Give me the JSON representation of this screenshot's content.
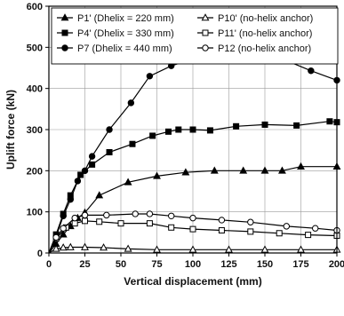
{
  "chart_data": {
    "type": "line",
    "xlabel": "Vertical displacement (mm)",
    "ylabel": "Uplift force (kN)",
    "xlim": [
      0,
      200
    ],
    "ylim": [
      0,
      600
    ],
    "xticks": [
      0,
      25,
      50,
      75,
      100,
      125,
      150,
      175,
      200
    ],
    "yticks": [
      0,
      100,
      200,
      300,
      400,
      500,
      600
    ],
    "grid": true,
    "legend_position": "top",
    "series": [
      {
        "name": "P1' (Dhelix = 220 mm)",
        "marker": "triangle-filled",
        "color": "#000000",
        "x": [
          0,
          5,
          10,
          15,
          20,
          25,
          35,
          55,
          75,
          95,
          115,
          135,
          150,
          162,
          175,
          200
        ],
        "y": [
          0,
          22,
          45,
          65,
          85,
          98,
          140,
          172,
          187,
          196,
          200,
          200,
          200,
          200,
          210,
          210
        ]
      },
      {
        "name": "P4' (Dhelix = 330 mm)",
        "marker": "square-filled",
        "color": "#000000",
        "x": [
          0,
          5,
          10,
          15,
          22,
          30,
          42,
          58,
          72,
          83,
          90,
          100,
          112,
          130,
          150,
          172,
          195,
          200
        ],
        "y": [
          0,
          45,
          95,
          140,
          190,
          215,
          245,
          265,
          285,
          295,
          300,
          300,
          298,
          308,
          312,
          310,
          320,
          318
        ]
      },
      {
        "name": "P7 (Dhelix = 440 mm)",
        "marker": "circle-filled",
        "color": "#000000",
        "x": [
          0,
          5,
          10,
          15,
          20,
          25,
          30,
          42,
          57,
          70,
          85,
          100,
          115,
          130,
          142,
          160,
          182,
          200
        ],
        "y": [
          0,
          40,
          90,
          130,
          175,
          200,
          235,
          300,
          365,
          430,
          455,
          472,
          482,
          488,
          490,
          475,
          443,
          420
        ]
      },
      {
        "name": "P10' (no-helix anchor)",
        "marker": "triangle-open",
        "color": "#000000",
        "x": [
          0,
          5,
          10,
          15,
          25,
          38,
          55,
          75,
          100,
          125,
          150,
          175,
          200
        ],
        "y": [
          0,
          10,
          13,
          14,
          14,
          13,
          10,
          8,
          8,
          8,
          8,
          8,
          8
        ]
      },
      {
        "name": "P11' (no-helix anchor)",
        "marker": "square-open",
        "color": "#000000",
        "x": [
          0,
          5,
          12,
          18,
          25,
          35,
          50,
          70,
          85,
          100,
          120,
          140,
          160,
          180,
          200
        ],
        "y": [
          0,
          35,
          62,
          72,
          78,
          76,
          72,
          72,
          62,
          58,
          55,
          52,
          48,
          44,
          42
        ]
      },
      {
        "name": "P12 (no-helix anchor)",
        "marker": "circle-open",
        "color": "#000000",
        "x": [
          0,
          5,
          10,
          18,
          25,
          40,
          60,
          70,
          85,
          100,
          120,
          140,
          165,
          185,
          200
        ],
        "y": [
          0,
          38,
          60,
          85,
          92,
          92,
          95,
          95,
          90,
          85,
          80,
          75,
          65,
          60,
          55
        ]
      }
    ]
  }
}
